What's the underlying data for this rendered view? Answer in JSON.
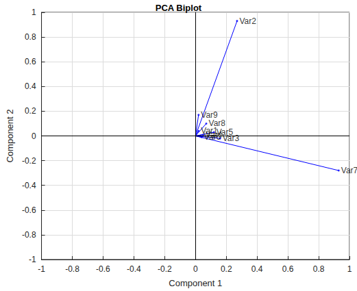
{
  "chart_data": {
    "type": "biplot",
    "title": "PCA Biplot",
    "x_label": "Component 1",
    "y_label": "Component 2",
    "labels": [
      "Var1",
      "Var2",
      "Var3",
      "Var4",
      "Var5",
      "Var6",
      "Var7",
      "Var8",
      "Var9"
    ],
    "x": [
      0.02,
      0.27,
      0.16,
      0.05,
      0.12,
      0.04,
      0.93,
      0.07,
      0.02
    ],
    "y": [
      0.04,
      0.93,
      -0.02,
      0.01,
      0.03,
      -0.01,
      -0.28,
      0.1,
      0.17
    ],
    "color": "#0000ff",
    "marker": "circle",
    "xlim": [
      -1,
      1
    ],
    "xticks": [
      -1,
      -0.8,
      -0.6,
      -0.4,
      -0.2,
      0,
      0.2,
      0.4,
      0.6,
      0.8,
      1
    ],
    "ylim": [
      -1,
      1
    ],
    "yticks": [
      -1,
      -0.8,
      -0.6,
      -0.4,
      -0.2,
      0,
      0.2,
      0.4,
      0.6,
      0.8,
      1
    ],
    "grid": true
  }
}
